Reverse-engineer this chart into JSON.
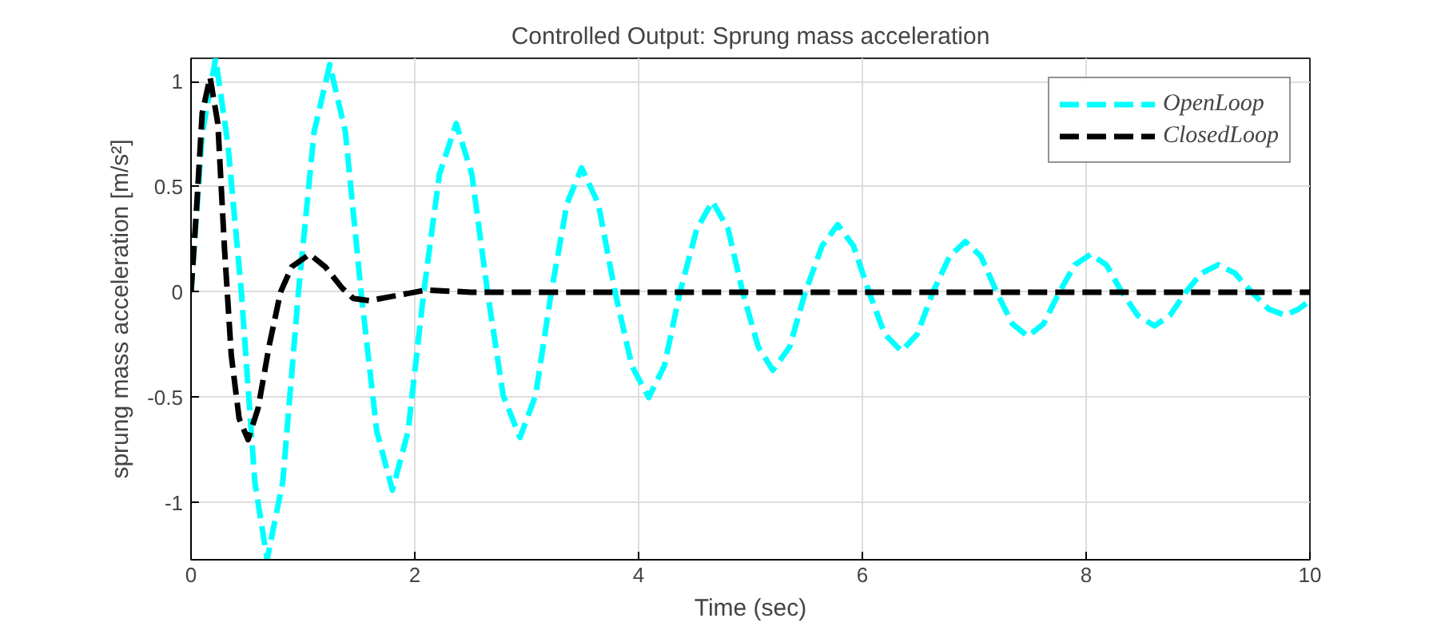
{
  "chart_data": {
    "type": "line",
    "title": "Controlled Output: Sprung mass acceleration",
    "xlabel": "Time (sec)",
    "ylabel": "sprung mass acceleration [m/s²]",
    "xlim": [
      0,
      10
    ],
    "ylim": [
      -1.27,
      1.11
    ],
    "xticks": [
      0,
      2,
      4,
      6,
      8,
      10
    ],
    "yticks": [
      -1,
      -0.5,
      0,
      0.5,
      1
    ],
    "grid": true,
    "legend": "top right",
    "line_style": "dashed",
    "series": [
      {
        "name": "OpenLoop",
        "color": "#00ffff",
        "x": [
          0,
          0.1,
          0.22,
          0.33,
          0.45,
          0.57,
          0.68,
          0.82,
          0.96,
          1.1,
          1.24,
          1.38,
          1.52,
          1.66,
          1.8,
          1.94,
          2.08,
          2.22,
          2.37,
          2.51,
          2.65,
          2.79,
          2.94,
          3.08,
          3.22,
          3.36,
          3.49,
          3.64,
          3.79,
          3.94,
          4.09,
          4.23,
          4.37,
          4.52,
          4.66,
          4.8,
          4.93,
          5.07,
          5.2,
          5.35,
          5.49,
          5.64,
          5.78,
          5.92,
          6.06,
          6.2,
          6.35,
          6.49,
          6.63,
          6.78,
          6.92,
          7.06,
          7.2,
          7.34,
          7.48,
          7.62,
          7.76,
          7.9,
          8.04,
          8.18,
          8.32,
          8.46,
          8.61,
          8.75,
          8.89,
          9.03,
          9.18,
          9.33,
          9.48,
          9.63,
          9.78,
          9.9,
          10
        ],
        "values": [
          0,
          0.75,
          1.11,
          0.7,
          0,
          -0.9,
          -1.27,
          -0.9,
          0,
          0.76,
          1.08,
          0.76,
          0,
          -0.66,
          -0.94,
          -0.66,
          0,
          0.56,
          0.8,
          0.56,
          0,
          -0.49,
          -0.69,
          -0.49,
          0,
          0.42,
          0.59,
          0.42,
          0,
          -0.35,
          -0.5,
          -0.35,
          0,
          0.3,
          0.43,
          0.3,
          0,
          -0.26,
          -0.37,
          -0.26,
          0,
          0.22,
          0.32,
          0.22,
          0,
          -0.2,
          -0.28,
          -0.2,
          0,
          0.17,
          0.24,
          0.17,
          0,
          -0.15,
          -0.21,
          -0.15,
          0,
          0.13,
          0.18,
          0.13,
          0,
          -0.11,
          -0.16,
          -0.11,
          0,
          0.09,
          0.13,
          0.09,
          0,
          -0.08,
          -0.11,
          -0.08,
          -0.04
        ]
      },
      {
        "name": "ClosedLoop",
        "color": "#000000",
        "x": [
          0,
          0.05,
          0.1,
          0.17,
          0.24,
          0.3,
          0.36,
          0.43,
          0.51,
          0.6,
          0.7,
          0.8,
          0.9,
          1.06,
          1.2,
          1.35,
          1.45,
          1.59,
          1.8,
          2.1,
          2.5,
          10
        ],
        "values": [
          0,
          0.4,
          0.85,
          1.02,
          0.8,
          0.2,
          -0.3,
          -0.6,
          -0.7,
          -0.55,
          -0.25,
          0,
          0.12,
          0.18,
          0.12,
          0.02,
          -0.03,
          -0.04,
          -0.02,
          0.01,
          0,
          0
        ]
      }
    ]
  }
}
